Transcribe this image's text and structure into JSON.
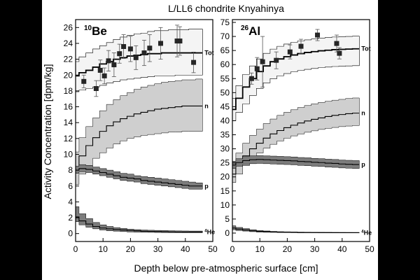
{
  "chart_data": {
    "type": "line",
    "title": "L/LL6 chondrite Knyahinya",
    "xlabel": "Depth below pre-atmospheric surface [cm]",
    "ylabel": "Activity Concentration [dpm/kg]",
    "panels": [
      {
        "label": "Be",
        "label_sup": "10",
        "xlim": [
          0,
          50
        ],
        "ylim": [
          -1,
          27
        ],
        "xticks": [
          0,
          10,
          20,
          30,
          40,
          50
        ],
        "yticks": [
          0,
          2,
          4,
          6,
          8,
          10,
          12,
          14,
          16,
          18,
          20,
          22,
          24,
          26
        ],
        "x": [
          0,
          2.5,
          5,
          7.5,
          10,
          12.5,
          15,
          17.5,
          20,
          22.5,
          25,
          27.5,
          30,
          32.5,
          35,
          37.5,
          40,
          42.5,
          45
        ],
        "bands": [
          {
            "name": "Tot",
            "label_sup": "",
            "mid": [
              19.9,
              20.3,
              20.6,
              21.0,
              21.4,
              21.7,
              22.0,
              22.2,
              22.4,
              22.5,
              22.6,
              22.7,
              22.7,
              22.8,
              22.8,
              22.8,
              22.8,
              22.8,
              22.8
            ],
            "lower": [
              17.9,
              18.1,
              18.3,
              18.5,
              18.7,
              19.0,
              19.2,
              19.4,
              19.5,
              19.6,
              19.7,
              19.8,
              19.9,
              19.9,
              19.9,
              20.0,
              20.0,
              20.0,
              20.0
            ],
            "upper": [
              21.7,
              22.3,
              22.8,
              23.3,
              23.7,
              24.1,
              24.5,
              24.8,
              25.0,
              25.2,
              25.3,
              25.5,
              25.6,
              25.6,
              25.7,
              25.7,
              25.7,
              25.8,
              25.8
            ],
            "fill": "#f4f4f4"
          },
          {
            "name": "n",
            "label_sup": "",
            "mid": [
              8.2,
              9.8,
              11.1,
              12.1,
              12.9,
              13.6,
              14.1,
              14.5,
              14.8,
              15.1,
              15.3,
              15.5,
              15.7,
              15.8,
              15.9,
              16.0,
              16.1,
              16.1,
              16.1
            ],
            "lower": [
              6.2,
              7.5,
              8.6,
              9.5,
              10.2,
              10.8,
              11.3,
              11.7,
              12.0,
              12.2,
              12.4,
              12.5,
              12.6,
              12.7,
              12.8,
              12.8,
              12.9,
              12.9,
              12.9
            ],
            "upper": [
              10.3,
              12.1,
              13.5,
              14.6,
              15.5,
              16.3,
              16.9,
              17.4,
              17.8,
              18.2,
              18.5,
              18.7,
              18.9,
              19.1,
              19.2,
              19.3,
              19.4,
              19.4,
              19.5
            ],
            "fill": "#cfcfcf"
          },
          {
            "name": "p",
            "label_sup": "",
            "mid": [
              8.0,
              8.2,
              8.1,
              7.9,
              7.7,
              7.5,
              7.3,
              7.1,
              7.0,
              6.9,
              6.7,
              6.6,
              6.5,
              6.4,
              6.3,
              6.2,
              6.1,
              6.0,
              6.0
            ],
            "lower": [
              7.6,
              7.8,
              7.7,
              7.5,
              7.3,
              7.1,
              6.9,
              6.7,
              6.6,
              6.5,
              6.3,
              6.2,
              6.1,
              6.0,
              5.9,
              5.8,
              5.7,
              5.6,
              5.6
            ],
            "upper": [
              8.5,
              8.7,
              8.6,
              8.4,
              8.2,
              8.0,
              7.8,
              7.6,
              7.5,
              7.3,
              7.2,
              7.1,
              7.0,
              6.9,
              6.8,
              6.7,
              6.6,
              6.5,
              6.4
            ],
            "fill": "#7d7d7d"
          },
          {
            "name": "He",
            "label_sup": "4",
            "mid": [
              2.1,
              1.6,
              1.2,
              0.9,
              0.7,
              0.6,
              0.5,
              0.45,
              0.4,
              0.35,
              0.3,
              0.28,
              0.26,
              0.24,
              0.22,
              0.2,
              0.2,
              0.2,
              0.2
            ],
            "lower": [
              1.5,
              1.1,
              0.8,
              0.6,
              0.45,
              0.35,
              0.3,
              0.25,
              0.2,
              0.18,
              0.16,
              0.15,
              0.14,
              0.13,
              0.12,
              0.12,
              0.11,
              0.11,
              0.11
            ],
            "upper": [
              3.4,
              2.5,
              1.9,
              1.4,
              1.1,
              0.9,
              0.75,
              0.65,
              0.55,
              0.5,
              0.45,
              0.42,
              0.4,
              0.38,
              0.36,
              0.34,
              0.33,
              0.32,
              0.32
            ],
            "fill": "#7d7d7d"
          }
        ],
        "points": [
          {
            "x": 3,
            "y": 19.2,
            "err": 0.8
          },
          {
            "x": 7.5,
            "y": 18.3,
            "err": 1.0
          },
          {
            "x": 9,
            "y": 20.6,
            "err": 1.3
          },
          {
            "x": 10.5,
            "y": 19.9,
            "err": 1.0
          },
          {
            "x": 12,
            "y": 21.8,
            "err": 1.3
          },
          {
            "x": 14,
            "y": 21.3,
            "err": 1.5
          },
          {
            "x": 16,
            "y": 22.7,
            "err": 1.2
          },
          {
            "x": 17.5,
            "y": 23.6,
            "err": 1.5
          },
          {
            "x": 20,
            "y": 23.3,
            "err": 1.6
          },
          {
            "x": 22,
            "y": 22.2,
            "err": 1.5
          },
          {
            "x": 25,
            "y": 22.8,
            "err": 1.6
          },
          {
            "x": 27,
            "y": 23.4,
            "err": 1.7
          },
          {
            "x": 31,
            "y": 24.0,
            "err": 2.0
          },
          {
            "x": 37,
            "y": 24.3,
            "err": 2.0
          },
          {
            "x": 38,
            "y": 24.3,
            "err": 1.8
          },
          {
            "x": 43,
            "y": 21.6,
            "err": 1.3
          }
        ]
      },
      {
        "label": "Al",
        "label_sup": "26",
        "xlim": [
          0,
          50
        ],
        "ylim": [
          -3,
          76
        ],
        "xticks": [
          0,
          10,
          20,
          30,
          40,
          50
        ],
        "yticks": [
          0,
          5,
          10,
          15,
          20,
          25,
          30,
          35,
          40,
          45,
          50,
          55,
          60,
          65,
          70,
          75
        ],
        "x": [
          0,
          2.5,
          5,
          7.5,
          10,
          12.5,
          15,
          17.5,
          20,
          22.5,
          25,
          27.5,
          30,
          32.5,
          35,
          37.5,
          40,
          42.5,
          45
        ],
        "bands": [
          {
            "name": "Tot",
            "label_sup": "",
            "mid": [
              44,
              48,
              52,
              55,
              57.5,
              59.5,
              61,
              62,
              62.8,
              63.4,
              63.9,
              64.3,
              64.6,
              64.9,
              65.1,
              65.3,
              65.4,
              65.5,
              65.6
            ],
            "lower": [
              40,
              43,
              46,
              49,
              51.5,
              53.5,
              55,
              56,
              56.8,
              57.4,
              57.9,
              58.3,
              58.6,
              58.9,
              59.1,
              59.3,
              59.4,
              59.5,
              59.6
            ],
            "upper": [
              48,
              52.5,
              56.5,
              59.5,
              62,
              64,
              65.5,
              66.5,
              67.3,
              67.9,
              68.4,
              68.8,
              69.1,
              69.4,
              69.6,
              69.8,
              69.9,
              70,
              70.1
            ],
            "fill": "#f4f4f4"
          },
          {
            "name": "n",
            "label_sup": "",
            "mid": [
              21,
              24.5,
              27.5,
              30,
              32,
              33.8,
              35.3,
              36.5,
              37.5,
              38.4,
              39.2,
              39.9,
              40.5,
              41,
              41.5,
              41.9,
              42.2,
              42.5,
              42.7
            ],
            "lower": [
              18,
              21,
              24,
              26.5,
              28.5,
              30.2,
              31.6,
              32.8,
              33.8,
              34.6,
              35.3,
              35.9,
              36.4,
              36.9,
              37.3,
              37.6,
              37.9,
              38.1,
              38.3
            ],
            "upper": [
              24.5,
              28.5,
              32,
              34.8,
              37,
              39,
              40.6,
              41.9,
              43,
              43.9,
              44.7,
              45.4,
              46,
              46.5,
              46.9,
              47.3,
              47.6,
              47.9,
              48.1
            ],
            "fill": "#cfcfcf"
          },
          {
            "name": "p",
            "label_sup": "",
            "mid": [
              24.2,
              25.1,
              25.8,
              26.1,
              26.2,
              26.1,
              26.0,
              25.9,
              25.8,
              25.7,
              25.5,
              25.4,
              25.2,
              25.1,
              24.9,
              24.8,
              24.6,
              24.5,
              24.4
            ],
            "lower": [
              23.0,
              23.8,
              24.4,
              24.7,
              24.8,
              24.7,
              24.6,
              24.5,
              24.4,
              24.3,
              24.1,
              24.0,
              23.8,
              23.7,
              23.5,
              23.4,
              23.2,
              23.1,
              23.0
            ],
            "upper": [
              25.6,
              26.5,
              27.2,
              27.5,
              27.6,
              27.5,
              27.4,
              27.3,
              27.2,
              27.1,
              26.9,
              26.8,
              26.6,
              26.5,
              26.3,
              26.2,
              26.0,
              25.9,
              25.8
            ],
            "fill": "#7d7d7d"
          },
          {
            "name": "He",
            "label_sup": "4",
            "mid": [
              1.8,
              1.4,
              1.1,
              0.8,
              0.6,
              0.5,
              0.4,
              0.35,
              0.3,
              0.25,
              0.2,
              0.2,
              0.18,
              0.16,
              0.15,
              0.14,
              0.13,
              0.12,
              0.12
            ],
            "lower": [
              1.2,
              0.9,
              0.7,
              0.5,
              0.35,
              0.3,
              0.25,
              0.2,
              0.18,
              0.15,
              0.12,
              0.12,
              0.1,
              0.1,
              0.09,
              0.08,
              0.08,
              0.07,
              0.07
            ],
            "upper": [
              2.6,
              2.0,
              1.6,
              1.2,
              0.9,
              0.75,
              0.6,
              0.5,
              0.45,
              0.4,
              0.35,
              0.32,
              0.3,
              0.28,
              0.26,
              0.25,
              0.24,
              0.23,
              0.22
            ],
            "fill": "#7d7d7d"
          }
        ],
        "points": [
          {
            "x": 7,
            "y": 55.0,
            "err": 2.0
          },
          {
            "x": 9,
            "y": 58.5,
            "err": 4.0
          },
          {
            "x": 11,
            "y": 61.0,
            "err": 9.0
          },
          {
            "x": 16,
            "y": 61.5,
            "err": 3.0
          },
          {
            "x": 21,
            "y": 64.5,
            "err": 2.5
          },
          {
            "x": 25,
            "y": 66.5,
            "err": 2.5
          },
          {
            "x": 31,
            "y": 70.5,
            "err": 2.0
          },
          {
            "x": 38,
            "y": 67.5,
            "err": 3.0
          },
          {
            "x": 39,
            "y": 64.0,
            "err": 2.0
          }
        ]
      }
    ]
  }
}
